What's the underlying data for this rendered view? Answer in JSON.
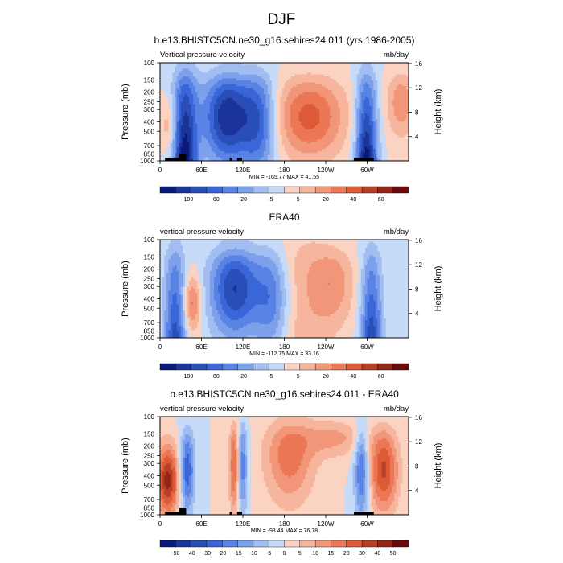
{
  "figure": {
    "title": "DJF"
  },
  "colors": {
    "frame": "#000000",
    "topography": "#000000",
    "cmap_negative_dark": "#0a1a7a",
    "cmap_negative_mid": "#3f6fe0",
    "cmap_negative_light": "#c8dcf8",
    "cmap_positive_light": "#fbd5c4",
    "cmap_positive_mid": "#e8623a",
    "cmap_positive_dark": "#6e0a0a"
  },
  "chart_data": [
    {
      "type": "heatmap",
      "title": "b.e13.BHISTC5CN.ne30_g16.sehires24.011 (yrs 1986-2005)",
      "left_label": "Vertical pressure velocity",
      "right_label": "mb/day",
      "ylabel": "Pressure (mb)",
      "ylabel_right": "Height (km)",
      "x_ticks": [
        "0",
        "60E",
        "120E",
        "180",
        "120W",
        "60W"
      ],
      "y_ticks": [
        "100",
        "150",
        "200",
        "250",
        "300",
        "400",
        "500",
        "700",
        "850",
        "1000"
      ],
      "y_ticks_right": [
        "16",
        "12",
        "8",
        "4"
      ],
      "stats": "MIN = -165.77  MAX = 41.55",
      "colorbar_labels": [
        "-100",
        "-60",
        "-20",
        "-5",
        "5",
        "20",
        "40",
        "60"
      ],
      "colorbar_levels": 16
    },
    {
      "type": "heatmap",
      "title": "ERA40",
      "left_label": "vertical pressure velocity",
      "right_label": "mb/day",
      "ylabel": "Pressure (mb)",
      "ylabel_right": "Height (km)",
      "x_ticks": [
        "0",
        "60E",
        "120E",
        "180",
        "120W",
        "60W"
      ],
      "y_ticks": [
        "100",
        "150",
        "200",
        "250",
        "300",
        "400",
        "500",
        "700",
        "850",
        "1000"
      ],
      "y_ticks_right": [
        "16",
        "12",
        "8",
        "4"
      ],
      "stats": "MIN = -112.75  MAX = 33.16",
      "colorbar_labels": [
        "-100",
        "-60",
        "-20",
        "-5",
        "5",
        "20",
        "40",
        "60"
      ],
      "colorbar_levels": 16
    },
    {
      "type": "heatmap",
      "title": "b.e13.BHISTC5CN.ne30_g16.sehires24.011 - ERA40",
      "left_label": "vertical pressure velocity",
      "right_label": "mb/day",
      "ylabel": "Pressure (mb)",
      "ylabel_right": "Height (km)",
      "x_ticks": [
        "0",
        "60E",
        "120E",
        "180",
        "120W",
        "60W"
      ],
      "y_ticks": [
        "100",
        "150",
        "200",
        "250",
        "300",
        "400",
        "500",
        "700",
        "850",
        "1000"
      ],
      "y_ticks_right": [
        "16",
        "12",
        "8",
        "4"
      ],
      "stats": "MIN = -93.44  MAX = 76.78",
      "colorbar_labels": [
        "-50",
        "-40",
        "-30",
        "-20",
        "-15",
        "-10",
        "-5",
        "0",
        "5",
        "10",
        "15",
        "20",
        "30",
        "40",
        "50"
      ],
      "colorbar_levels": 16
    }
  ]
}
